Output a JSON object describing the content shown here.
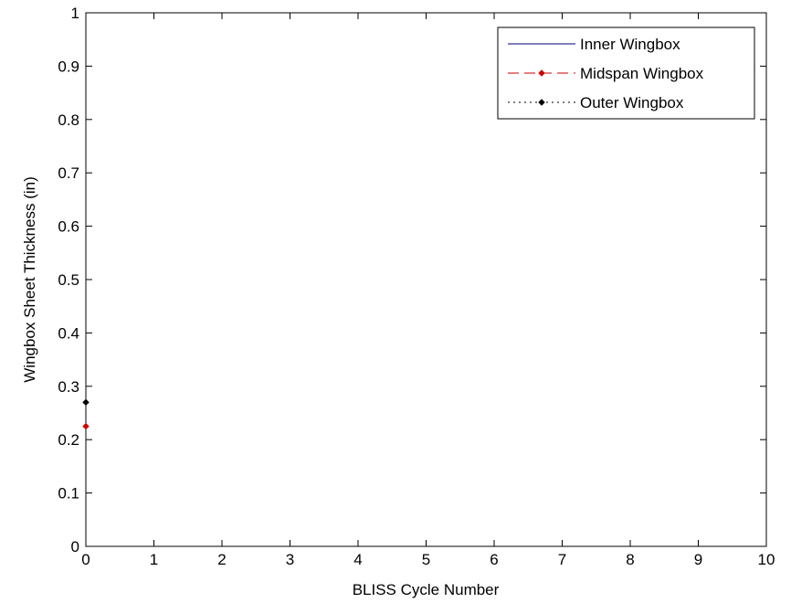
{
  "chart_data": {
    "type": "line",
    "title": "",
    "xlabel": "BLISS Cycle Number",
    "ylabel": "Wingbox Sheet Thickness (in)",
    "xlim": [
      0,
      10
    ],
    "ylim": [
      0,
      1
    ],
    "x_ticks": [
      "0",
      "1",
      "2",
      "3",
      "4",
      "5",
      "6",
      "7",
      "8",
      "9",
      "10"
    ],
    "y_ticks": [
      "0",
      "0.1",
      "0.2",
      "0.3",
      "0.4",
      "0.5",
      "0.6",
      "0.7",
      "0.8",
      "0.9",
      "1"
    ],
    "grid": false,
    "legend_position": "top-right",
    "series": [
      {
        "name": "Inner Wingbox",
        "x": [],
        "y": [],
        "color": "#00007f",
        "line_style": "solid",
        "marker": "none"
      },
      {
        "name": "Midspan Wingbox",
        "x": [
          0
        ],
        "y": [
          0.225
        ],
        "color": "#cc0000",
        "line_style": "dashed",
        "marker": "diamond"
      },
      {
        "name": "Outer Wingbox",
        "x": [
          0
        ],
        "y": [
          0.27
        ],
        "color": "#000000",
        "line_style": "dotted",
        "marker": "diamond"
      }
    ]
  }
}
